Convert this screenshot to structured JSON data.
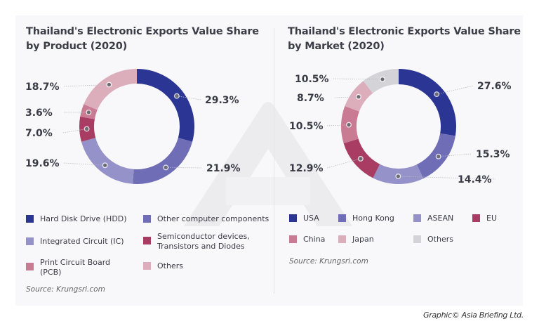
{
  "chart_data": [
    {
      "type": "pie",
      "variant": "donut",
      "title": "Thailand's Electronic Exports Value Share by Product (2020)",
      "title_lines": [
        "Thailand's Electronic Exports Value Share",
        "by Product (2020)"
      ],
      "unit": "%",
      "slices": [
        {
          "label": "Hard Disk Drive (HDD)",
          "value": 29.3,
          "display": "29.3%",
          "color": "#2b3594"
        },
        {
          "label": "Other computer components",
          "value": 21.9,
          "display": "21.9%",
          "color": "#6f6db5"
        },
        {
          "label": "Integrated Circuit (IC)",
          "value": 19.6,
          "display": "19.6%",
          "color": "#9592c9"
        },
        {
          "label": "Semiconductor devices, Transistors and Diodes",
          "value": 7.0,
          "display": "7.0%",
          "color": "#a83c63"
        },
        {
          "label": "Print Circuit Board (PCB)",
          "value": 3.6,
          "display": "3.6%",
          "color": "#c97b94"
        },
        {
          "label": "Others",
          "value": 18.7,
          "display": "18.7%",
          "color": "#dcaebc"
        }
      ],
      "legend": [
        {
          "label": "Hard Disk Drive (HDD)",
          "color": "#2b3594"
        },
        {
          "label": "Other computer components",
          "color": "#6f6db5"
        },
        {
          "label": "Integrated Circuit (IC)",
          "color": "#9592c9"
        },
        {
          "label_lines": [
            "Semiconductor devices,",
            "Transistors and Diodes"
          ],
          "color": "#a83c63"
        },
        {
          "label_lines": [
            "Print Circuit Board",
            "(PCB)"
          ],
          "color": "#c97b94"
        },
        {
          "label": "Others",
          "color": "#dcaebc"
        }
      ],
      "legend_placement": "bottom",
      "source": "Source: Krungsri.com"
    },
    {
      "type": "pie",
      "variant": "donut",
      "title": "Thailand's Electronic Exports Value Share by Market (2020)",
      "title_lines": [
        "Thailand's Electronic Exports Value Share",
        "by Market (2020)"
      ],
      "unit": "%",
      "slices": [
        {
          "label": "USA",
          "value": 27.6,
          "display": "27.6%",
          "color": "#2b3594"
        },
        {
          "label": "Hong Kong",
          "value": 15.3,
          "display": "15.3%",
          "color": "#6f6db5"
        },
        {
          "label": "ASEAN",
          "value": 14.4,
          "display": "14.4%",
          "color": "#9592c9"
        },
        {
          "label": "EU",
          "value": 12.9,
          "display": "12.9%",
          "color": "#a83c63"
        },
        {
          "label": "China",
          "value": 10.5,
          "display": "10.5%",
          "color": "#c97b94"
        },
        {
          "label": "Japan",
          "value": 8.7,
          "display": "8.7%",
          "color": "#dcaebc"
        },
        {
          "label": "Others",
          "value": 10.5,
          "display": "10.5%",
          "color": "#d4d4d8"
        }
      ],
      "legend": [
        {
          "label": "USA",
          "color": "#2b3594"
        },
        {
          "label": "Hong Kong",
          "color": "#6f6db5"
        },
        {
          "label": "ASEAN",
          "color": "#9592c9"
        },
        {
          "label": "EU",
          "color": "#a83c63"
        },
        {
          "label": "China",
          "color": "#c97b94"
        },
        {
          "label": "Japan",
          "color": "#dcaebc"
        },
        {
          "label": "Others",
          "color": "#d4d4d8"
        }
      ],
      "legend_placement": "bottom",
      "source": "Source: Krungsri.com"
    }
  ],
  "credit": "Graphic© Asia Briefing Ltd."
}
